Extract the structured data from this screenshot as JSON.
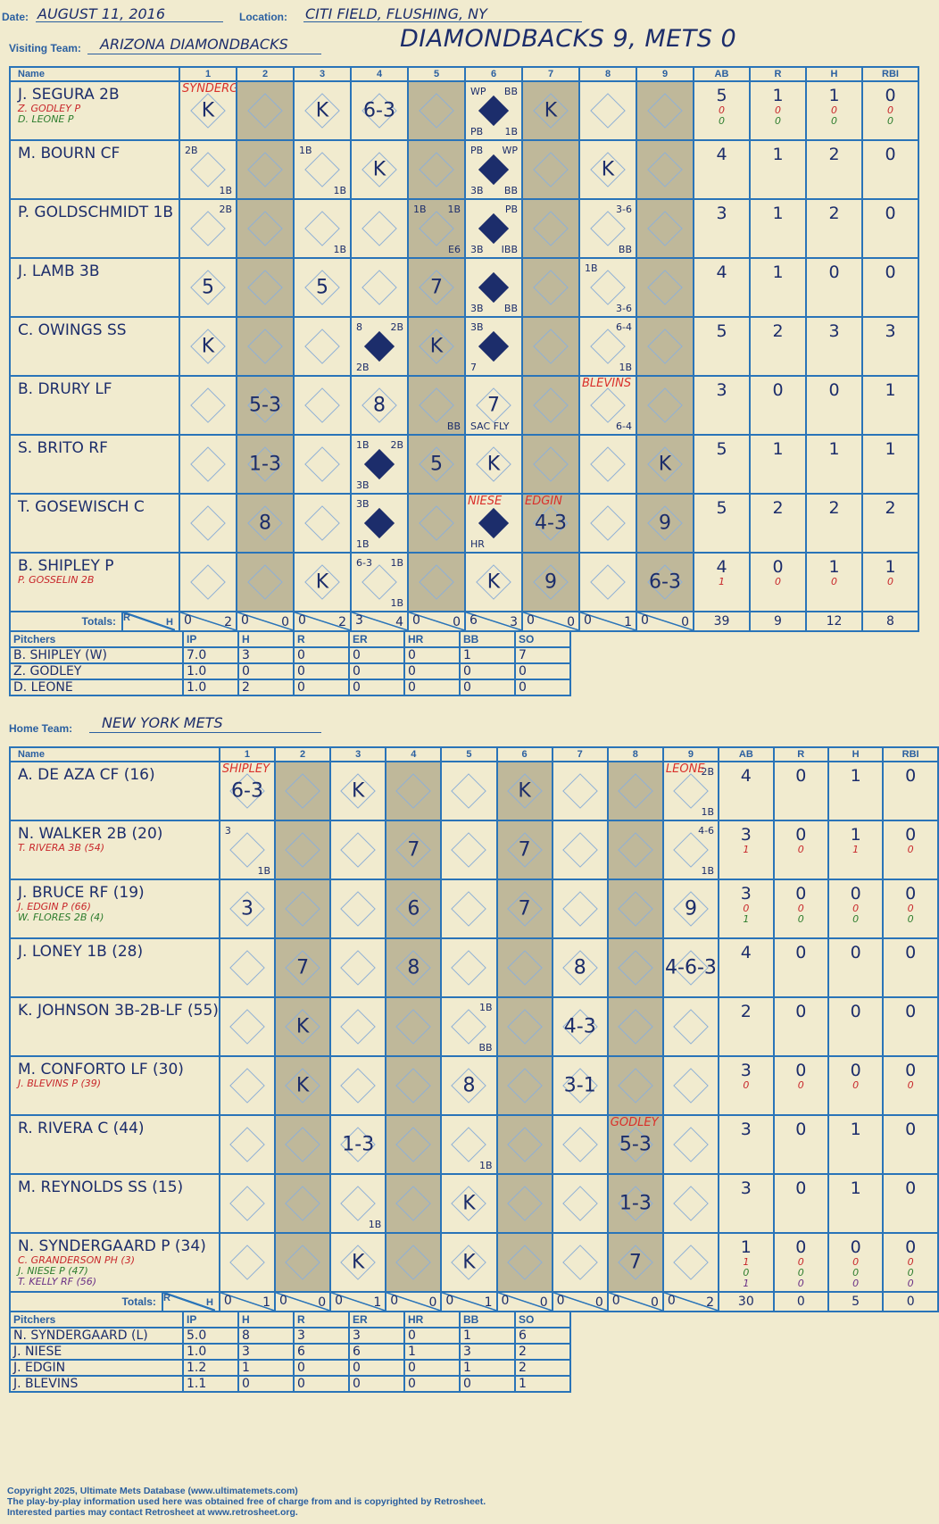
{
  "header": {
    "date_label": "Date:",
    "date": "AUGUST 11, 2016",
    "location_label": "Location:",
    "location": "CITI FIELD, FLUSHING, NY",
    "visiting_label": "Visiting Team:",
    "visiting_team": "ARIZONA DIAMONDBACKS",
    "title": "DIAMONDBACKS 9, METS 0",
    "home_label": "Home Team:",
    "home_team": "NEW YORK METS"
  },
  "columns": {
    "name": "Name",
    "innings": [
      "1",
      "2",
      "3",
      "4",
      "5",
      "6",
      "7",
      "8",
      "9"
    ],
    "stats": [
      "AB",
      "R",
      "H",
      "RBI"
    ]
  },
  "totals_label": "Totals:",
  "rh": {
    "r": "R",
    "h": "H"
  },
  "visitors": {
    "shaded": [
      2,
      5,
      7,
      9
    ],
    "rows": [
      {
        "name": "J. SEGURA 2B",
        "subs": [
          {
            "t": "Z. GODLEY P",
            "c": "red"
          },
          {
            "t": "D. LEONE P",
            "c": "green"
          }
        ],
        "cells": {
          "1": {
            "res": "K",
            "note": "SYNDERGAARD"
          },
          "3": {
            "res": "K"
          },
          "4": {
            "res": "6-3"
          },
          "6": {
            "full": true,
            "tl": "WP",
            "tr": "BB",
            "bl": "PB",
            "br": "1B"
          },
          "7": {
            "res": "K"
          }
        },
        "stats": [
          "5",
          "1",
          "1",
          "0"
        ],
        "sub_stats": [
          [
            "0",
            "0",
            "0",
            "0"
          ],
          [
            "0",
            "0",
            "0",
            "0"
          ]
        ]
      },
      {
        "name": "M. BOURN CF",
        "subs": [],
        "cells": {
          "1": {
            "tl": "2B",
            "br": "1B"
          },
          "3": {
            "tl": "1B",
            "br": "1B"
          },
          "4": {
            "res": "K"
          },
          "6": {
            "full": true,
            "tl": "PB",
            "tr": "WP",
            "bl": "3B",
            "br": "BB"
          },
          "8": {
            "res": "K"
          }
        },
        "stats": [
          "4",
          "1",
          "2",
          "0"
        ],
        "sub_stats": []
      },
      {
        "name": "P. GOLDSCHMIDT 1B",
        "subs": [],
        "cells": {
          "1": {
            "tr": "2B"
          },
          "3": {
            "br": "1B"
          },
          "5": {
            "tl": "1B",
            "tr": "1B",
            "br": "E6"
          },
          "6": {
            "full": true,
            "tr": "PB",
            "bl": "3B",
            "br": "IBB"
          },
          "8": {
            "tr": "3-6",
            "br": "BB"
          }
        },
        "stats": [
          "3",
          "1",
          "2",
          "0"
        ],
        "sub_stats": []
      },
      {
        "name": "J. LAMB 3B",
        "subs": [],
        "cells": {
          "1": {
            "res": "5"
          },
          "3": {
            "res": "5"
          },
          "5": {
            "res": "7"
          },
          "6": {
            "full": true,
            "bl": "3B",
            "br": "BB"
          },
          "8": {
            "tl": "1B",
            "br": "3-6"
          }
        },
        "stats": [
          "4",
          "1",
          "0",
          "0"
        ],
        "sub_stats": []
      },
      {
        "name": "C. OWINGS SS",
        "subs": [],
        "cells": {
          "1": {
            "res": "K"
          },
          "4": {
            "full": true,
            "tl": "8",
            "tr": "2B",
            "bl": "2B"
          },
          "5": {
            "res": "K"
          },
          "6": {
            "full": true,
            "tl": "3B",
            "bl": "7"
          },
          "8": {
            "tr": "6-4",
            "br": "1B"
          }
        },
        "stats": [
          "5",
          "2",
          "3",
          "3"
        ],
        "sub_stats": []
      },
      {
        "name": "B. DRURY LF",
        "subs": [],
        "cells": {
          "2": {
            "res": "5-3"
          },
          "4": {
            "res": "8"
          },
          "5": {
            "br": "BB"
          },
          "6": {
            "res": "7",
            "bl": "SAC FLY"
          },
          "8": {
            "note": "BLEVINS",
            "br": "6-4"
          }
        },
        "stats": [
          "3",
          "0",
          "0",
          "1"
        ],
        "sub_stats": []
      },
      {
        "name": "S. BRITO RF",
        "subs": [],
        "cells": {
          "2": {
            "res": "1-3"
          },
          "4": {
            "full": true,
            "tl": "1B",
            "tr": "2B",
            "bl": "3B"
          },
          "5": {
            "res": "5"
          },
          "6": {
            "res": "K"
          },
          "9": {
            "res": "K"
          }
        },
        "stats": [
          "5",
          "1",
          "1",
          "1"
        ],
        "sub_stats": []
      },
      {
        "name": "T. GOSEWISCH C",
        "subs": [],
        "cells": {
          "2": {
            "res": "8"
          },
          "4": {
            "full": true,
            "tl": "3B",
            "bl": "1B"
          },
          "6": {
            "full": true,
            "note": "NIESE",
            "bl": "HR"
          },
          "7": {
            "res": "4-3",
            "note": "EDGIN"
          },
          "9": {
            "res": "9"
          }
        },
        "stats": [
          "5",
          "2",
          "2",
          "2"
        ],
        "sub_stats": []
      },
      {
        "name": "B. SHIPLEY P",
        "subs": [
          {
            "t": "P. GOSSELIN 2B",
            "c": "red"
          }
        ],
        "cells": {
          "3": {
            "res": "K"
          },
          "4": {
            "tl": "6-3",
            "tr": "1B",
            "br": "1B"
          },
          "6": {
            "res": "K"
          },
          "7": {
            "res": "9"
          },
          "9": {
            "res": "6-3",
            "rc": "red"
          }
        },
        "stats": [
          "4",
          "0",
          "1",
          "1"
        ],
        "sub_stats": [
          [
            "1",
            "0",
            "0",
            "0"
          ]
        ]
      }
    ],
    "totals": [
      [
        "0",
        "2"
      ],
      [
        "0",
        "0"
      ],
      [
        "0",
        "2"
      ],
      [
        "3",
        "4"
      ],
      [
        "0",
        "0"
      ],
      [
        "6",
        "3"
      ],
      [
        "0",
        "0"
      ],
      [
        "0",
        "1"
      ],
      [
        "0",
        "0"
      ]
    ],
    "totals_stats": [
      "39",
      "9",
      "12",
      "8"
    ]
  },
  "visitor_pitchers": {
    "headers": [
      "Pitchers",
      "IP",
      "H",
      "R",
      "ER",
      "HR",
      "BB",
      "SO"
    ],
    "rows": [
      [
        "B. SHIPLEY (W)",
        "7.0",
        "3",
        "0",
        "0",
        "0",
        "1",
        "7"
      ],
      [
        "Z. GODLEY",
        "1.0",
        "0",
        "0",
        "0",
        "0",
        "0",
        "0"
      ],
      [
        "D. LEONE",
        "1.0",
        "2",
        "0",
        "0",
        "0",
        "0",
        "0"
      ]
    ]
  },
  "home": {
    "shaded": [
      2,
      4,
      6,
      8
    ],
    "rows": [
      {
        "name": "A. DE AZA CF (16)",
        "subs": [],
        "cells": {
          "1": {
            "res": "6-3",
            "note": "SHIPLEY"
          },
          "3": {
            "res": "K"
          },
          "6": {
            "res": "K"
          },
          "9": {
            "note": "LEONE",
            "tr": "2B",
            "br": "1B"
          }
        },
        "stats": [
          "4",
          "0",
          "1",
          "0"
        ],
        "sub_stats": []
      },
      {
        "name": "N. WALKER 2B (20)",
        "subs": [
          {
            "t": "T. RIVERA 3B (54)",
            "c": "red"
          }
        ],
        "cells": {
          "1": {
            "tl": "3",
            "br": "1B"
          },
          "4": {
            "res": "7"
          },
          "6": {
            "res": "7"
          },
          "9": {
            "tr": "4-6",
            "br": "1B",
            "cc": "red"
          }
        },
        "stats": [
          "3",
          "0",
          "1",
          "0"
        ],
        "sub_stats": [
          [
            "1",
            "0",
            "1",
            "0"
          ]
        ]
      },
      {
        "name": "J. BRUCE RF (19)",
        "subs": [
          {
            "t": "J. EDGIN P (66)",
            "c": "red"
          },
          {
            "t": "W. FLORES 2B (4)",
            "c": "green"
          }
        ],
        "cells": {
          "1": {
            "res": "3"
          },
          "4": {
            "res": "6"
          },
          "6": {
            "res": "7"
          },
          "9": {
            "res": "9",
            "rc": "green"
          }
        },
        "stats": [
          "3",
          "0",
          "0",
          "0"
        ],
        "sub_stats": [
          [
            "0",
            "0",
            "0",
            "0"
          ],
          [
            "1",
            "0",
            "0",
            "0"
          ]
        ]
      },
      {
        "name": "J. LONEY 1B (28)",
        "subs": [],
        "cells": {
          "2": {
            "res": "7"
          },
          "4": {
            "res": "8"
          },
          "7": {
            "res": "8"
          },
          "9": {
            "res": "4-6-3"
          }
        },
        "stats": [
          "4",
          "0",
          "0",
          "0"
        ],
        "sub_stats": []
      },
      {
        "name": "K. JOHNSON 3B-2B-LF (55)",
        "subs": [],
        "cells": {
          "2": {
            "res": "K"
          },
          "5": {
            "tr": "1B",
            "br": "BB"
          },
          "7": {
            "res": "4-3"
          }
        },
        "stats": [
          "2",
          "0",
          "0",
          "0"
        ],
        "sub_stats": []
      },
      {
        "name": "M. CONFORTO LF (30)",
        "subs": [
          {
            "t": "J. BLEVINS P (39)",
            "c": "red"
          }
        ],
        "cells": {
          "2": {
            "res": "K"
          },
          "5": {
            "res": "8"
          },
          "7": {
            "res": "3-1"
          }
        },
        "stats": [
          "3",
          "0",
          "0",
          "0"
        ],
        "sub_stats": [
          [
            "0",
            "0",
            "0",
            "0"
          ]
        ]
      },
      {
        "name": "R. RIVERA C (44)",
        "subs": [],
        "cells": {
          "3": {
            "res": "1-3"
          },
          "5": {
            "br": "1B"
          },
          "8": {
            "res": "5-3",
            "note": "GODLEY"
          }
        },
        "stats": [
          "3",
          "0",
          "1",
          "0"
        ],
        "sub_stats": []
      },
      {
        "name": "M. REYNOLDS SS (15)",
        "subs": [],
        "cells": {
          "3": {
            "br": "1B"
          },
          "5": {
            "res": "K"
          },
          "8": {
            "res": "1-3"
          }
        },
        "stats": [
          "3",
          "0",
          "1",
          "0"
        ],
        "sub_stats": []
      },
      {
        "name": "N. SYNDERGAARD P (34)",
        "subs": [
          {
            "t": "C. GRANDERSON PH (3)",
            "c": "red"
          },
          {
            "t": "J. NIESE P (47)",
            "c": "green"
          },
          {
            "t": "T. KELLY RF (56)",
            "c": "purple"
          }
        ],
        "cells": {
          "3": {
            "res": "K"
          },
          "5": {
            "res": "K",
            "rc": "red"
          },
          "8": {
            "res": "7",
            "rc": "purple"
          }
        },
        "stats": [
          "1",
          "0",
          "0",
          "0"
        ],
        "sub_stats": [
          [
            "1",
            "0",
            "0",
            "0"
          ],
          [
            "0",
            "0",
            "0",
            "0"
          ],
          [
            "1",
            "0",
            "0",
            "0"
          ]
        ]
      }
    ],
    "totals": [
      [
        "0",
        "1"
      ],
      [
        "0",
        "0"
      ],
      [
        "0",
        "1"
      ],
      [
        "0",
        "0"
      ],
      [
        "0",
        "1"
      ],
      [
        "0",
        "0"
      ],
      [
        "0",
        "0"
      ],
      [
        "0",
        "0"
      ],
      [
        "0",
        "2"
      ]
    ],
    "totals_stats": [
      "30",
      "0",
      "5",
      "0"
    ]
  },
  "home_pitchers": {
    "headers": [
      "Pitchers",
      "IP",
      "H",
      "R",
      "ER",
      "HR",
      "BB",
      "SO"
    ],
    "rows": [
      [
        "N. SYNDERGAARD (L)",
        "5.0",
        "8",
        "3",
        "3",
        "0",
        "1",
        "6"
      ],
      [
        "J. NIESE",
        "1.0",
        "3",
        "6",
        "6",
        "1",
        "3",
        "2"
      ],
      [
        "J. EDGIN",
        "1.2",
        "1",
        "0",
        "0",
        "0",
        "1",
        "2"
      ],
      [
        "J. BLEVINS",
        "1.1",
        "0",
        "0",
        "0",
        "0",
        "0",
        "1"
      ]
    ]
  },
  "footer": {
    "line1": "Copyright 2025, Ultimate Mets Database (www.ultimatemets.com)",
    "line2": "The play-by-play information used here was obtained free of charge from and is copyrighted by Retrosheet.",
    "line3": "Interested parties may contact Retrosheet at www.retrosheet.org."
  },
  "colors": {
    "ink": "#1c2d6b",
    "grid": "#2a74b8",
    "shade": "#bfb89a",
    "paper": "#f1ebcf",
    "red": "#c8272b",
    "green": "#2e7d2e",
    "purple": "#6a2f85"
  }
}
